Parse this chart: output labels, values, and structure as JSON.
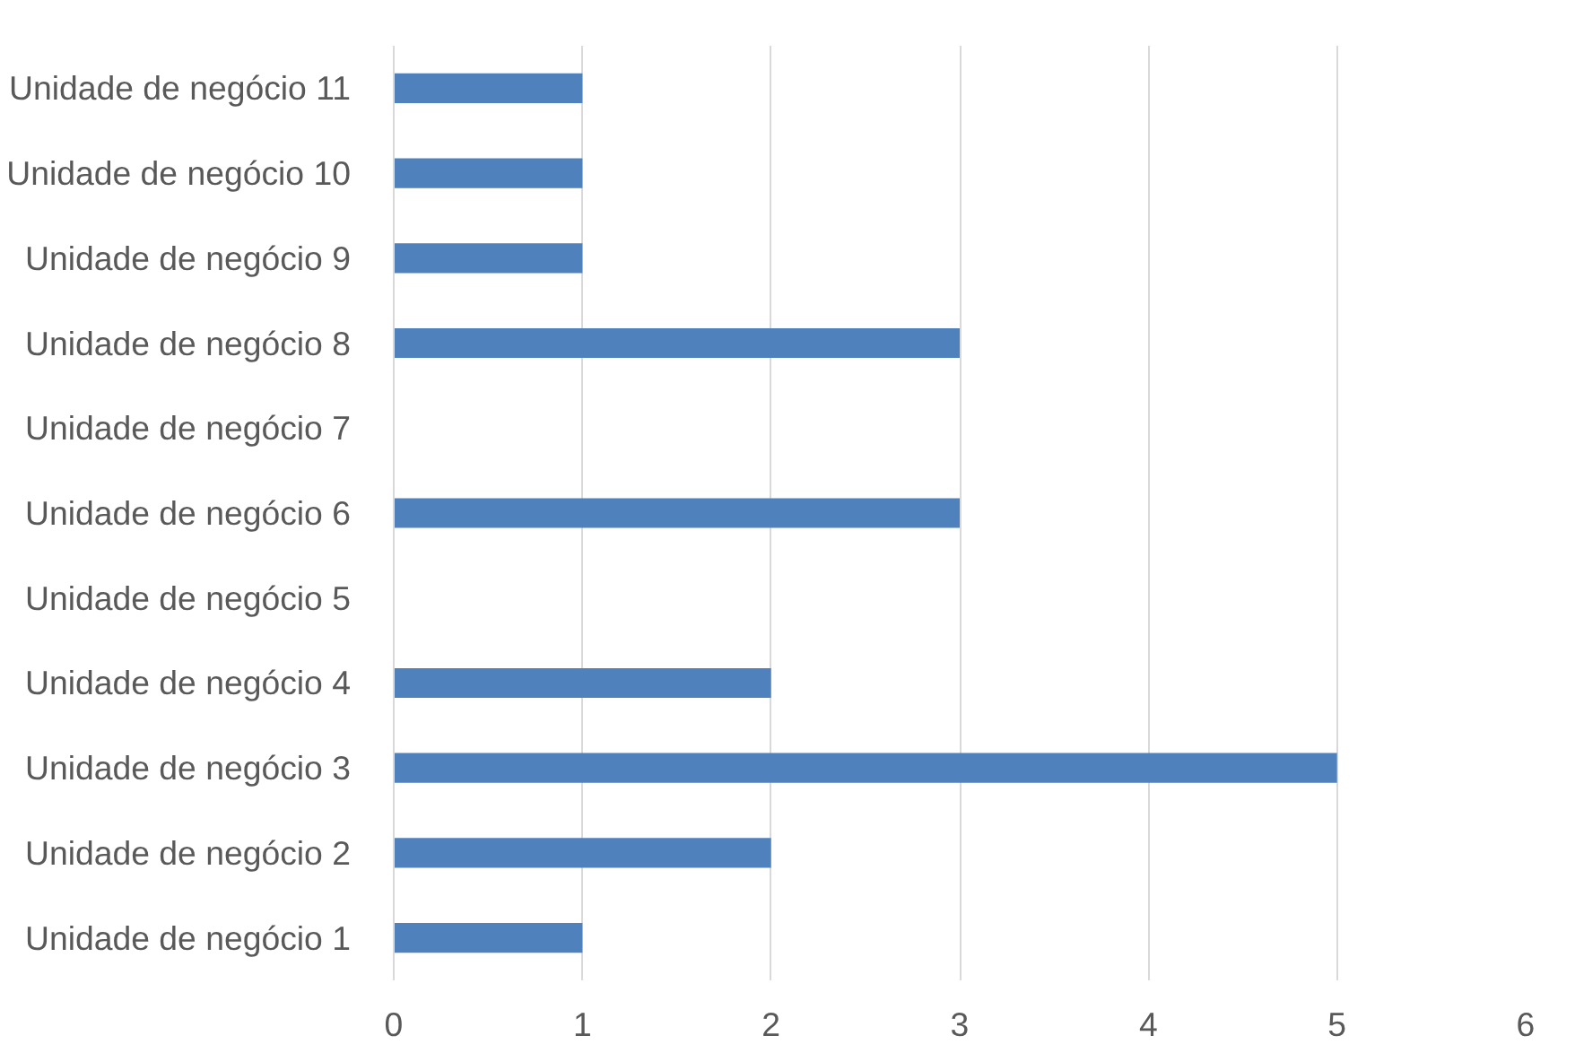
{
  "chart_data": {
    "type": "bar",
    "orientation": "horizontal",
    "categories": [
      "Unidade de negócio 11",
      "Unidade de negócio 10",
      "Unidade de negócio 9",
      "Unidade de negócio 8",
      "Unidade de negócio 7",
      "Unidade de negócio 6",
      "Unidade de negócio 5",
      "Unidade de negócio 4",
      "Unidade de negócio 3",
      "Unidade de negócio 2",
      "Unidade de negócio 1"
    ],
    "values": [
      1,
      1,
      1,
      3,
      0,
      3,
      0,
      2,
      5,
      2,
      1
    ],
    "color": "#4f81bd",
    "xlim": [
      0,
      6
    ],
    "xticks": [
      0,
      1,
      2,
      3,
      4,
      5,
      6
    ],
    "grid": "x"
  }
}
